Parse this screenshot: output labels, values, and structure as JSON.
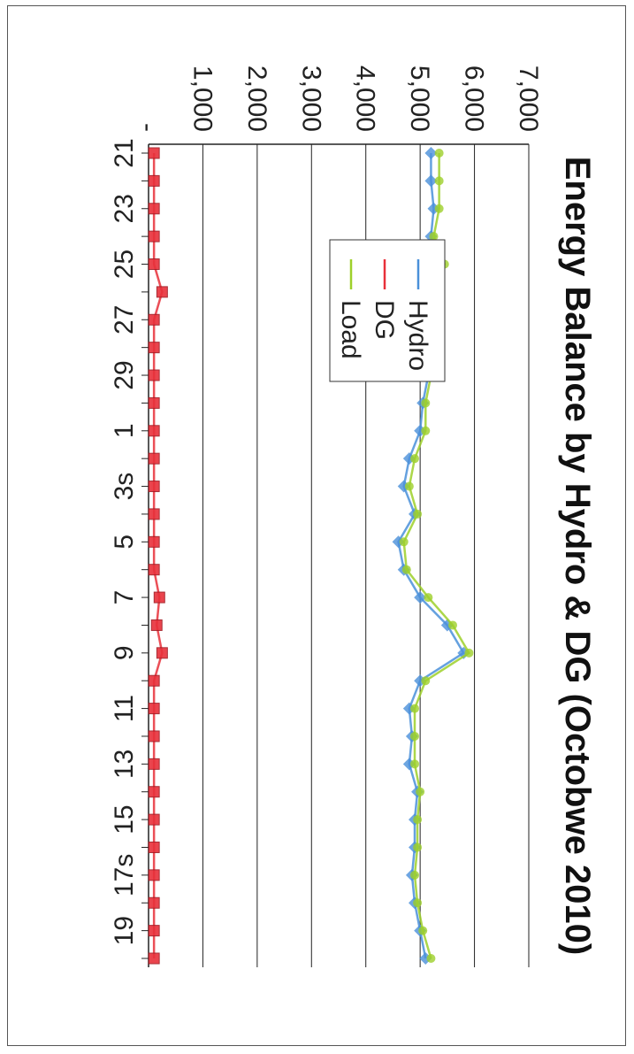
{
  "chart_data": {
    "type": "line",
    "orientation": "rotated-90-clockwise",
    "title": "Energy Balance by Hydro & DG (Octobwe 2010)",
    "xlabel": "",
    "ylabel": "",
    "ylim": [
      0,
      7000
    ],
    "y_ticks": [
      "-",
      "1,000",
      "2,000",
      "3,000",
      "4,000",
      "5,000",
      "6,000",
      "7,000"
    ],
    "y_tick_values": [
      0,
      1000,
      2000,
      3000,
      4000,
      5000,
      6000,
      7000
    ],
    "x_tick_labels": [
      "21",
      "23",
      "25",
      "27",
      "29",
      "1",
      "3s",
      "5",
      "7",
      "9",
      "11",
      "13",
      "15",
      "17s",
      "19"
    ],
    "grid": true,
    "legend_position": "inside-center",
    "series": [
      {
        "name": "Hydro",
        "color": "#4a90d9",
        "marker": "diamond",
        "values": [
          5200,
          5200,
          5250,
          5200,
          5300,
          5000,
          5100,
          5250,
          5150,
          5050,
          5000,
          4800,
          4700,
          4900,
          4600,
          4700,
          5000,
          5500,
          5800,
          5000,
          4800,
          4850,
          4800,
          4950,
          4900,
          4900,
          4850,
          4900,
          5000,
          5100
        ]
      },
      {
        "name": "DG",
        "color": "#e8303a",
        "marker": "square",
        "values": [
          100,
          100,
          100,
          100,
          100,
          250,
          100,
          100,
          100,
          100,
          100,
          100,
          100,
          100,
          100,
          100,
          200,
          150,
          250,
          100,
          100,
          100,
          100,
          100,
          100,
          100,
          100,
          100,
          100,
          100
        ]
      },
      {
        "name": "Load",
        "color": "#9ed02a",
        "marker": "star",
        "values": [
          5350,
          5350,
          5350,
          5250,
          5450,
          5100,
          5150,
          5300,
          5200,
          5100,
          5100,
          4900,
          4800,
          4950,
          4700,
          4750,
          5150,
          5600,
          5900,
          5100,
          4900,
          4900,
          4900,
          5000,
          4950,
          4950,
          4900,
          4950,
          5050,
          5200
        ]
      }
    ]
  }
}
